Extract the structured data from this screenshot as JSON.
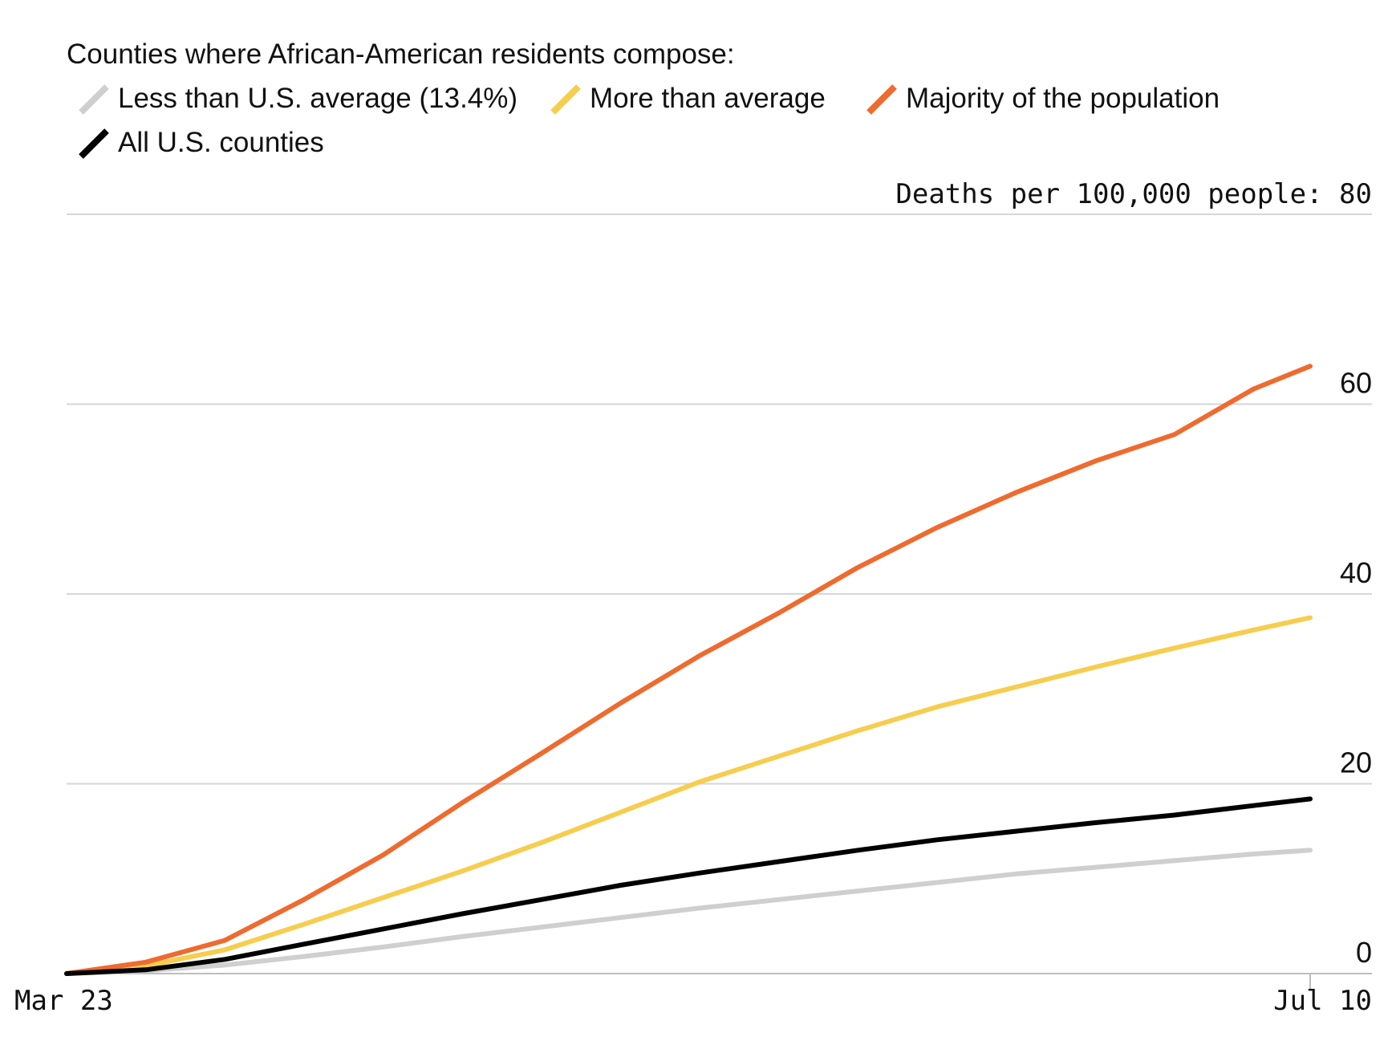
{
  "legend": {
    "title": "Counties where African-American residents compose:",
    "items": [
      {
        "label": "Less than U.S. average (13.4%)",
        "color": "#cfcfcf",
        "icon": "gray-line-swatch-icon"
      },
      {
        "label": "More than average",
        "color": "#f6cd4f",
        "icon": "yellow-line-swatch-icon"
      },
      {
        "label": "Majority of the population",
        "color": "#ee6b2f",
        "icon": "orange-line-swatch-icon"
      },
      {
        "label": "All U.S. counties",
        "color": "#000000",
        "icon": "black-line-swatch-icon"
      }
    ]
  },
  "chart_data": {
    "type": "line",
    "title": "Counties where African-American residents compose:",
    "ylabel": "Deaths per 100,000 people",
    "top_tick_label": "Deaths per 100,000 people: 80",
    "y_ticks": [
      0,
      20,
      40,
      60,
      80
    ],
    "ylim": [
      0,
      80
    ],
    "x_start_label": "Mar 23",
    "x_end_label": "Jul 10",
    "grid": true,
    "x": [
      0,
      7,
      14,
      21,
      28,
      35,
      42,
      49,
      56,
      63,
      70,
      77,
      84,
      91,
      98,
      105,
      110
    ],
    "series": [
      {
        "name": "Less than U.S. average (13.4%)",
        "color": "#cfcfcf",
        "values": [
          0,
          0.3,
          0.9,
          1.8,
          2.8,
          3.9,
          4.9,
          5.9,
          6.9,
          7.8,
          8.7,
          9.6,
          10.5,
          11.2,
          11.9,
          12.6,
          13.0
        ]
      },
      {
        "name": "More than average",
        "color": "#f6cd4f",
        "values": [
          0,
          0.8,
          2.5,
          5.2,
          8.0,
          10.8,
          13.8,
          17.0,
          20.2,
          22.9,
          25.6,
          28.1,
          30.2,
          32.3,
          34.3,
          36.2,
          37.5
        ]
      },
      {
        "name": "Majority of the population",
        "color": "#ee6b2f",
        "values": [
          0,
          1.2,
          3.5,
          7.8,
          12.5,
          18.0,
          23.2,
          28.5,
          33.5,
          38.0,
          42.8,
          47.0,
          50.7,
          54.0,
          56.8,
          61.6,
          64.0
        ]
      },
      {
        "name": "All U.S. counties",
        "color": "#000000",
        "values": [
          0,
          0.4,
          1.5,
          3.1,
          4.7,
          6.3,
          7.8,
          9.3,
          10.6,
          11.8,
          13.0,
          14.1,
          15.0,
          15.9,
          16.7,
          17.7,
          18.4
        ]
      }
    ]
  }
}
